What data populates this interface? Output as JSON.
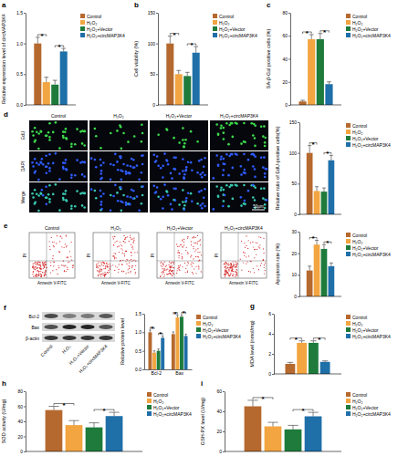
{
  "panel_labels": [
    "a",
    "b",
    "c",
    "d",
    "e",
    "f",
    "g",
    "h",
    "i"
  ],
  "edu_panel": {
    "row_labels": [
      "EdU",
      "DAPI",
      "Merge"
    ],
    "column_labels": [
      "Control",
      "H₂O₂",
      "H₂O₂+Vector",
      "H₂O₂+circMAP3K4"
    ],
    "scale_bar": "50μm"
  },
  "flow_panel": {
    "titles": [
      "Control",
      "H₂O₂",
      "H₂O₂+Vector",
      "H₂O₂+circMAP3K4"
    ],
    "x_label": "Annexin V-FITC",
    "y_label": "PI"
  },
  "blot_panel": {
    "bands": [
      "Bcl-2",
      "Bax",
      "β-actin"
    ],
    "lanes": [
      "Control",
      "H₂O₂",
      "H₂O₂+Vector",
      "H₂O₂+circMAP3K4"
    ]
  },
  "chart_data": [
    {
      "type": "bar",
      "y_label": "Relative expression level of circMAP3K4",
      "categories": [
        "Control",
        "H₂O₂",
        "H₂O₂+Vector",
        "H₂O₂+circMAP3K4"
      ],
      "values": [
        1.0,
        0.37,
        0.33,
        0.87
      ],
      "errors": [
        0.1,
        0.08,
        0.07,
        0.05
      ],
      "colors": [
        "#b5692f",
        "#f2a541",
        "#1e7b3c",
        "#1f6fa8"
      ],
      "ylim": [
        0,
        1.5
      ],
      "yticks": [
        {
          "value": 0,
          "label": "0.0"
        },
        {
          "value": 0.5,
          "label": "0.5"
        },
        {
          "value": 1,
          "label": "1.0"
        },
        {
          "value": 1.5,
          "label": "1.5"
        }
      ],
      "grid": false,
      "legend": "top-right",
      "tick_labels": "y",
      "annotations": [
        {
          "text": "*",
          "between": [
            0,
            1
          ]
        },
        {
          "text": "*",
          "between": [
            2,
            3
          ]
        }
      ]
    },
    {
      "type": "bar",
      "y_label": "Cell viability (%)",
      "categories": [
        "Control",
        "H₂O₂",
        "H₂O₂+Vector",
        "H₂O₂+circMAP3K4"
      ],
      "values": [
        100,
        50,
        47,
        85
      ],
      "errors": [
        12,
        6,
        6,
        10
      ],
      "colors": [
        "#b5692f",
        "#f2a541",
        "#1e7b3c",
        "#1f6fa8"
      ],
      "ylim": [
        0,
        150
      ],
      "yticks": [
        0,
        50,
        100,
        150
      ],
      "grid": false,
      "legend": "top-right",
      "tick_labels": "y",
      "annotations": [
        {
          "text": "*",
          "between": [
            0,
            1
          ]
        },
        {
          "text": "*",
          "between": [
            2,
            3
          ]
        }
      ]
    },
    {
      "type": "bar",
      "y_label": "SA-β-Gal positive cells (%)",
      "categories": [
        "Control",
        "H₂O₂",
        "H₂O₂+Vector",
        "H₂O₂+circMAP3K4"
      ],
      "values": [
        3,
        57,
        57,
        18
      ],
      "errors": [
        1,
        4,
        5,
        2
      ],
      "colors": [
        "#b5692f",
        "#f2a541",
        "#1e7b3c",
        "#1f6fa8"
      ],
      "ylim": [
        0,
        80
      ],
      "yticks": [
        0,
        20,
        40,
        60,
        80
      ],
      "grid": false,
      "legend": "top-right",
      "tick_labels": "y",
      "annotations": [
        {
          "text": "*",
          "between": [
            0,
            1
          ]
        },
        {
          "text": "*",
          "between": [
            2,
            3
          ]
        }
      ]
    },
    {
      "type": "bar",
      "y_label": "Relative ratio of EdU-positive cells(%)",
      "categories": [
        "Control",
        "H₂O₂",
        "H₂O₂+Vector",
        "H₂O₂+circMAP3K4"
      ],
      "values": [
        100,
        38,
        37,
        88
      ],
      "errors": [
        12,
        7,
        6,
        8
      ],
      "colors": [
        "#b5692f",
        "#f2a541",
        "#1e7b3c",
        "#1f6fa8"
      ],
      "ylim": [
        0,
        150
      ],
      "yticks": [
        0,
        50,
        100,
        150
      ],
      "grid": false,
      "legend": "top-right",
      "tick_labels": "y",
      "annotations": [
        {
          "text": "*",
          "between": [
            0,
            1
          ]
        },
        {
          "text": "*",
          "between": [
            2,
            3
          ]
        }
      ]
    },
    {
      "type": "bar",
      "y_label": "Apoptosis rate (%)",
      "categories": [
        "Control",
        "H₂O₂",
        "H₂O₂+Vector",
        "H₂O₂+circMAP3K4"
      ],
      "values": [
        12,
        24,
        22,
        14
      ],
      "errors": [
        2,
        2,
        2,
        1.5
      ],
      "colors": [
        "#b5692f",
        "#f2a541",
        "#1e7b3c",
        "#1f6fa8"
      ],
      "ylim": [
        0,
        30
      ],
      "yticks": [
        0,
        10,
        20,
        30
      ],
      "grid": false,
      "legend": "top-right",
      "tick_labels": "y",
      "annotations": [
        {
          "text": "*",
          "between": [
            0,
            1
          ]
        },
        {
          "text": "*",
          "between": [
            2,
            3
          ]
        }
      ]
    },
    {
      "type": "bar",
      "y_label": "Relative protein level",
      "categories": [
        "Bcl-2",
        "Bax"
      ],
      "series": [
        {
          "name": "Control",
          "color": "#b5692f",
          "values": [
            1.0,
            0.95
          ],
          "errors": [
            0.06,
            0.06
          ]
        },
        {
          "name": "H₂O₂",
          "color": "#f2a541",
          "values": [
            0.45,
            1.4
          ],
          "errors": [
            0.05,
            0.06
          ]
        },
        {
          "name": "H₂O₂+Vector",
          "color": "#1e7b3c",
          "values": [
            0.5,
            1.42
          ],
          "errors": [
            0.05,
            0.05
          ]
        },
        {
          "name": "H₂O₂+circMAP3K4",
          "color": "#1f6fa8",
          "values": [
            0.85,
            0.9
          ],
          "errors": [
            0.05,
            0.05
          ]
        }
      ],
      "ylim": [
        0,
        1.5
      ],
      "yticks": [
        {
          "value": 0,
          "label": "0.0"
        },
        {
          "value": 0.5,
          "label": "0.5"
        },
        {
          "value": 1,
          "label": "1.0"
        },
        {
          "value": 1.5,
          "label": "1.5"
        }
      ],
      "grid": false,
      "legend": "top-right",
      "annotations": [
        {
          "text": "*",
          "category": 0,
          "between": [
            0,
            1
          ]
        },
        {
          "text": "*",
          "category": 0,
          "between": [
            2,
            3
          ]
        },
        {
          "text": "*",
          "category": 1,
          "between": [
            0,
            1
          ]
        },
        {
          "text": "*",
          "category": 1,
          "between": [
            2,
            3
          ]
        }
      ]
    },
    {
      "type": "bar",
      "y_label": "MDA level (nmol/mg)",
      "categories": [
        "Control",
        "H₂O₂",
        "H₂O₂+Vector",
        "H₂O₂+circMAP3K4"
      ],
      "values": [
        1.0,
        3.1,
        3.1,
        1.2
      ],
      "errors": [
        0.15,
        0.2,
        0.2,
        0.1
      ],
      "colors": [
        "#b5692f",
        "#f2a541",
        "#1e7b3c",
        "#1f6fa8"
      ],
      "ylim": [
        0,
        6
      ],
      "yticks": [
        0,
        2,
        4,
        6
      ],
      "grid": false,
      "legend": "top-right",
      "tick_labels": "y",
      "annotations": [
        {
          "text": "*",
          "between": [
            0,
            1
          ]
        },
        {
          "text": "*",
          "between": [
            2,
            3
          ]
        }
      ]
    },
    {
      "type": "bar",
      "y_label": "SOD activity (U/mg)",
      "categories": [
        "Control",
        "H₂O₂",
        "H₂O₂+Vector",
        "H₂O₂+circMAP3K4"
      ],
      "values": [
        55,
        35,
        32,
        47
      ],
      "errors": [
        5,
        6,
        6,
        5
      ],
      "colors": [
        "#b5692f",
        "#f2a541",
        "#1e7b3c",
        "#1f6fa8"
      ],
      "ylim": [
        0,
        80
      ],
      "yticks": [
        0,
        20,
        40,
        60,
        80
      ],
      "grid": false,
      "legend": "top-right",
      "tick_labels": "y",
      "annotations": [
        {
          "text": "*",
          "between": [
            0,
            1
          ]
        },
        {
          "text": "*",
          "between": [
            2,
            3
          ]
        }
      ]
    },
    {
      "type": "bar",
      "y_label": "GSH-PX level (U/mg)",
      "categories": [
        "Control",
        "H₂O₂",
        "H₂O₂+Vector",
        "H₂O₂+circMAP3K4"
      ],
      "values": [
        45,
        25,
        22,
        35
      ],
      "errors": [
        6,
        4,
        4,
        4
      ],
      "colors": [
        "#b5692f",
        "#f2a541",
        "#1e7b3c",
        "#1f6fa8"
      ],
      "ylim": [
        0,
        60
      ],
      "yticks": [
        0,
        20,
        40,
        60
      ],
      "grid": false,
      "legend": "top-right",
      "tick_labels": "y",
      "annotations": [
        {
          "text": "*",
          "between": [
            0,
            1
          ]
        },
        {
          "text": "*",
          "between": [
            2,
            3
          ]
        }
      ]
    }
  ]
}
